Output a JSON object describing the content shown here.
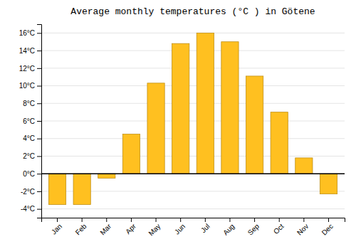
{
  "chart_data": {
    "type": "bar",
    "title": "Average monthly temperatures (°C ) in Götene",
    "categories": [
      "Jan",
      "Feb",
      "Mar",
      "Apr",
      "May",
      "Jun",
      "Jul",
      "Aug",
      "Sep",
      "Oct",
      "Nov",
      "Dec"
    ],
    "values": [
      -3.5,
      -3.5,
      -0.5,
      4.5,
      10.3,
      14.8,
      16.0,
      15.0,
      11.1,
      7.0,
      1.8,
      -2.3
    ],
    "color": "#FFC020",
    "ylim": [
      -5,
      17
    ],
    "yticks": [
      {
        "value": -4,
        "label": "-4°C"
      },
      {
        "value": -2,
        "label": "-2°C"
      },
      {
        "value": 0,
        "label": "0°C"
      },
      {
        "value": 2,
        "label": "2°C"
      },
      {
        "value": 4,
        "label": "4°C"
      },
      {
        "value": 6,
        "label": "6°C"
      },
      {
        "value": 8,
        "label": "8°C"
      },
      {
        "value": 10,
        "label": "10°C"
      },
      {
        "value": 12,
        "label": "12°C"
      },
      {
        "value": 14,
        "label": "14°C"
      },
      {
        "value": 16,
        "label": "16°C"
      }
    ],
    "grid": true
  }
}
